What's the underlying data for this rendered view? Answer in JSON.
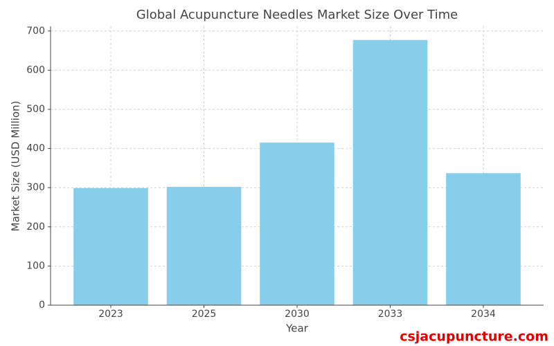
{
  "chart_data": {
    "type": "bar",
    "title": "Global Acupuncture Needles Market Size Over Time",
    "x_label": "Year",
    "y_label": "Market Size (USD Million)",
    "categories": [
      "2023",
      "2025",
      "2030",
      "2033",
      "2034"
    ],
    "values": [
      299,
      302,
      415,
      677,
      337
    ],
    "color": "#87ceeb",
    "ylim": [
      0,
      712
    ],
    "yticks": [
      0,
      100,
      200,
      300,
      400,
      500,
      600,
      700
    ],
    "grid": true
  },
  "watermark": "csjacupuncture.com"
}
